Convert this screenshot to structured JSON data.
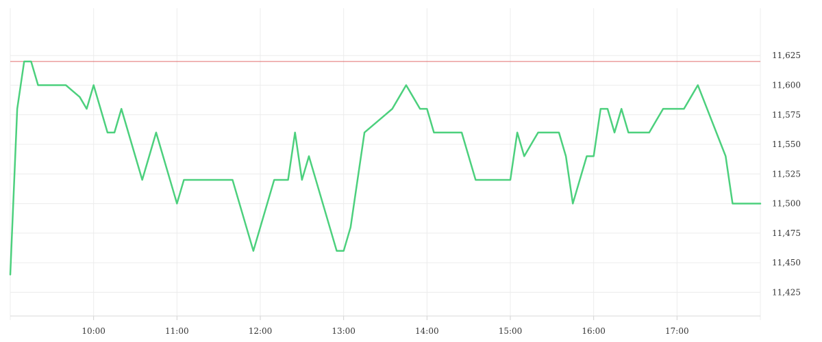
{
  "chart_data": {
    "type": "line",
    "title": "",
    "xlabel": "",
    "ylabel": "",
    "x_tick_labels": [
      "10:00",
      "11:00",
      "12:00",
      "13:00",
      "14:00",
      "15:00",
      "16:00",
      "17:00"
    ],
    "y_tick_labels": [
      "11,625",
      "11,600",
      "11,575",
      "11,550",
      "11,525",
      "11,500",
      "11,475",
      "11,450",
      "11,425"
    ],
    "y_ticks": [
      11625,
      11600,
      11575,
      11550,
      11525,
      11500,
      11475,
      11450,
      11425
    ],
    "xlim": [
      "09:00",
      "18:00"
    ],
    "ylim": [
      11405,
      11665
    ],
    "grid": true,
    "y_axis_side": "right",
    "reference_line": {
      "value": 11620,
      "color": "#e06c6c"
    },
    "series": [
      {
        "color": "#4cd07d",
        "x": [
          "09:00",
          "09:05",
          "09:10",
          "09:15",
          "09:20",
          "09:25",
          "09:30",
          "09:35",
          "09:40",
          "09:45",
          "09:50",
          "09:55",
          "10:00",
          "10:05",
          "10:10",
          "10:15",
          "10:20",
          "10:25",
          "10:30",
          "10:35",
          "10:40",
          "10:45",
          "10:50",
          "10:55",
          "11:00",
          "11:05",
          "11:10",
          "11:15",
          "11:20",
          "11:25",
          "11:30",
          "11:35",
          "11:40",
          "11:45",
          "11:50",
          "11:55",
          "12:00",
          "12:05",
          "12:10",
          "12:15",
          "12:20",
          "12:25",
          "12:30",
          "12:35",
          "12:40",
          "12:45",
          "12:50",
          "12:55",
          "13:00",
          "13:05",
          "13:10",
          "13:15",
          "13:20",
          "13:25",
          "13:30",
          "13:35",
          "13:40",
          "13:45",
          "13:50",
          "13:55",
          "14:00",
          "14:05",
          "14:10",
          "14:15",
          "14:20",
          "14:25",
          "14:30",
          "14:35",
          "14:40",
          "14:45",
          "14:50",
          "14:55",
          "15:00",
          "15:05",
          "15:10",
          "15:15",
          "15:20",
          "15:25",
          "15:30",
          "15:35",
          "15:40",
          "15:45",
          "15:50",
          "15:55",
          "16:00",
          "16:05",
          "16:10",
          "16:15",
          "16:20",
          "16:25",
          "16:30",
          "16:35",
          "16:40",
          "16:45",
          "16:50",
          "16:55",
          "17:00",
          "17:05",
          "17:10",
          "17:15",
          "17:20",
          "17:25",
          "17:30",
          "17:35",
          "17:40",
          "17:45",
          "17:50",
          "17:55",
          "18:00"
        ],
        "values": [
          11440,
          11580,
          11620,
          11620,
          11600,
          11600,
          11600,
          11600,
          11600,
          11595,
          11590,
          11580,
          11600,
          11580,
          11560,
          11560,
          11580,
          11560,
          11540,
          11520,
          11540,
          11560,
          11540,
          11520,
          11500,
          11520,
          11520,
          11520,
          11520,
          11520,
          11520,
          11520,
          11520,
          11500,
          11480,
          11460,
          11480,
          11500,
          11520,
          11520,
          11520,
          11560,
          11520,
          11540,
          11520,
          11500,
          11480,
          11460,
          11460,
          11480,
          11520,
          11560,
          11565,
          11570,
          11575,
          11580,
          11590,
          11600,
          11590,
          11580,
          11580,
          11560,
          11560,
          11560,
          11560,
          11560,
          11540,
          11520,
          11520,
          11520,
          11520,
          11520,
          11520,
          11560,
          11540,
          11550,
          11560,
          11560,
          11560,
          11560,
          11540,
          11500,
          11520,
          11540,
          11540,
          11580,
          11580,
          11560,
          11580,
          11560,
          11560,
          11560,
          11560,
          11570,
          11580,
          11580,
          11580,
          11580,
          11590,
          11600,
          11585,
          11570,
          11555,
          11540,
          11500,
          11500,
          11500,
          11500,
          11500
        ]
      }
    ]
  }
}
